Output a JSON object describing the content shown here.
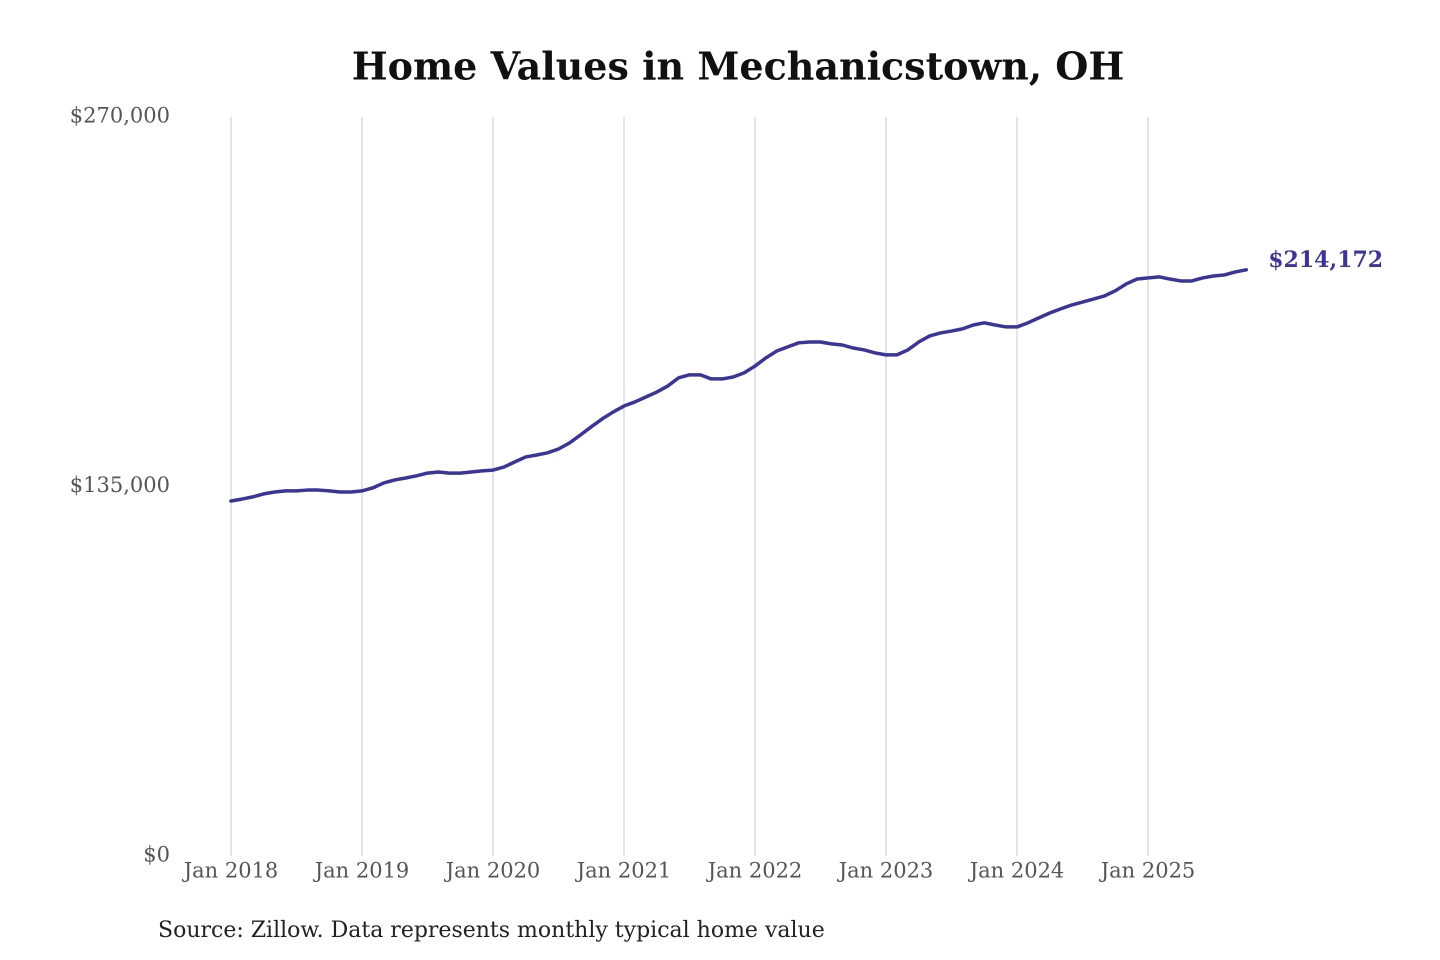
{
  "chart_data": {
    "type": "line",
    "title": "Home Values in Mechanicstown, OH",
    "source": "Source: Zillow. Data represents monthly typical home value",
    "categories": [
      "Jan 2018",
      null,
      null,
      null,
      null,
      null,
      null,
      null,
      null,
      null,
      null,
      null,
      "Jan 2019",
      null,
      null,
      null,
      null,
      null,
      null,
      null,
      null,
      null,
      null,
      null,
      "Jan 2020",
      null,
      null,
      null,
      null,
      null,
      null,
      null,
      null,
      null,
      null,
      null,
      "Jan 2021",
      null,
      null,
      null,
      null,
      null,
      null,
      null,
      null,
      null,
      null,
      null,
      "Jan 2022",
      null,
      null,
      null,
      null,
      null,
      null,
      null,
      null,
      null,
      null,
      null,
      "Jan 2023",
      null,
      null,
      null,
      null,
      null,
      null,
      null,
      null,
      null,
      null,
      null,
      "Jan 2024",
      null,
      null,
      null,
      null,
      null,
      null,
      null,
      null,
      null,
      null,
      null,
      "Jan 2025",
      null,
      null,
      null,
      null,
      null,
      null,
      null,
      null,
      null
    ],
    "values": [
      129700,
      130400,
      131200,
      132300,
      133000,
      133400,
      133400,
      133700,
      133700,
      133400,
      133000,
      133000,
      133400,
      134500,
      136300,
      137400,
      138100,
      138900,
      139900,
      140300,
      139900,
      139900,
      140300,
      140700,
      141000,
      142100,
      144000,
      145800,
      146500,
      147300,
      148700,
      150900,
      153800,
      156800,
      159700,
      162200,
      164400,
      165900,
      167700,
      169500,
      171700,
      174700,
      175800,
      175800,
      174300,
      174300,
      175000,
      176500,
      179000,
      182000,
      184500,
      186000,
      187500,
      187800,
      187800,
      187100,
      186700,
      185600,
      184900,
      183800,
      183100,
      183100,
      184900,
      187800,
      190000,
      191100,
      191800,
      192600,
      194000,
      194800,
      194000,
      193300,
      193300,
      194800,
      196600,
      198400,
      199900,
      201300,
      202400,
      203500,
      204600,
      206500,
      209000,
      210800,
      211200,
      211600,
      210800,
      210100,
      210100,
      211200,
      211900,
      212300,
      213400,
      214172
    ],
    "value_labels": [
      null,
      null,
      null,
      null,
      null,
      null,
      null,
      null,
      null,
      null,
      null,
      null,
      null,
      null,
      null,
      null,
      null,
      null,
      null,
      null,
      null,
      null,
      null,
      null,
      null,
      null,
      null,
      null,
      null,
      null,
      null,
      null,
      null,
      null,
      null,
      null,
      null,
      null,
      null,
      null,
      null,
      null,
      null,
      null,
      null,
      null,
      null,
      null,
      null,
      null,
      null,
      null,
      null,
      null,
      null,
      null,
      null,
      null,
      null,
      null,
      null,
      null,
      null,
      null,
      null,
      null,
      null,
      null,
      null,
      null,
      null,
      null,
      null,
      null,
      null,
      null,
      null,
      null,
      null,
      null,
      null,
      null,
      null,
      null,
      null,
      null,
      null,
      null,
      null,
      null,
      null,
      null,
      null,
      "$214,172"
    ],
    "color": "#3b3599",
    "ylim": [
      0,
      270000
    ],
    "yticks": [
      {
        "value": 0,
        "label": "$0"
      },
      {
        "value": 135000,
        "label": "$135,000"
      },
      {
        "value": 270000,
        "label": "$270,000"
      }
    ],
    "grid": "x"
  }
}
